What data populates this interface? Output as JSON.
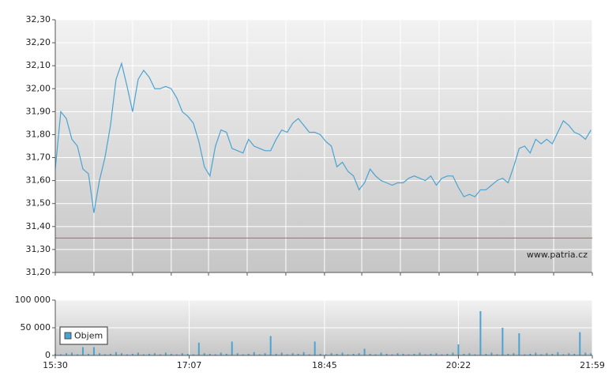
{
  "chart_data": [
    {
      "type": "line",
      "color": "#4aa3d1",
      "watermark": "www.patria.cz",
      "reference_line": {
        "value": 31.35,
        "color": "#d9534f"
      },
      "x": [
        930,
        934,
        938,
        942,
        946,
        950,
        954,
        958,
        962,
        966,
        970,
        974,
        978,
        982,
        986,
        990,
        994,
        998,
        1002,
        1006,
        1010,
        1014,
        1018,
        1022,
        1026,
        1030,
        1034,
        1038,
        1042,
        1046,
        1050,
        1054,
        1058,
        1062,
        1066,
        1070,
        1074,
        1078,
        1082,
        1086,
        1090,
        1094,
        1098,
        1102,
        1106,
        1110,
        1114,
        1118,
        1122,
        1126,
        1130,
        1134,
        1138,
        1142,
        1146,
        1150,
        1154,
        1158,
        1162,
        1166,
        1170,
        1174,
        1178,
        1182,
        1186,
        1190,
        1194,
        1198,
        1202,
        1206,
        1210,
        1214,
        1218,
        1222,
        1226,
        1230,
        1234,
        1238,
        1242,
        1246,
        1250,
        1254,
        1258,
        1262,
        1266,
        1270,
        1274,
        1278,
        1282,
        1286,
        1290,
        1294,
        1298,
        1302,
        1306,
        1310,
        1314,
        1318
      ],
      "values": [
        31.65,
        31.9,
        31.87,
        31.78,
        31.75,
        31.65,
        31.63,
        31.46,
        31.6,
        31.7,
        31.84,
        32.04,
        32.11,
        32.01,
        31.9,
        32.04,
        32.08,
        32.05,
        32.0,
        32.0,
        32.01,
        32.0,
        31.96,
        31.9,
        31.88,
        31.85,
        31.77,
        31.66,
        31.62,
        31.75,
        31.82,
        31.81,
        31.74,
        31.73,
        31.72,
        31.78,
        31.75,
        31.74,
        31.73,
        31.73,
        31.78,
        31.82,
        31.81,
        31.85,
        31.87,
        31.84,
        31.81,
        31.81,
        31.8,
        31.77,
        31.75,
        31.66,
        31.68,
        31.64,
        31.62,
        31.56,
        31.59,
        31.65,
        31.62,
        31.6,
        31.59,
        31.58,
        31.59,
        31.59,
        31.61,
        31.62,
        31.61,
        31.6,
        31.62,
        31.58,
        31.61,
        31.62,
        31.62,
        31.57,
        31.53,
        31.54,
        31.53,
        31.56,
        31.56,
        31.58,
        31.6,
        31.61,
        31.59,
        31.66,
        31.74,
        31.75,
        31.72,
        31.78,
        31.76,
        31.78,
        31.76,
        31.81,
        31.86,
        31.84,
        31.81,
        31.8,
        31.78,
        31.82
      ],
      "xlim": [
        930,
        1319
      ],
      "xticks": [
        930,
        958,
        986,
        1014,
        1041,
        1069,
        1097,
        1125,
        1152,
        1180,
        1208,
        1236,
        1263,
        1291,
        1319
      ],
      "ylim": [
        31.2,
        32.3
      ],
      "yticks": [
        {
          "value": 31.2,
          "label": "31,20"
        },
        {
          "value": 31.3,
          "label": "31,30"
        },
        {
          "value": 31.4,
          "label": "31,40"
        },
        {
          "value": 31.5,
          "label": "31,50"
        },
        {
          "value": 31.6,
          "label": "31,60"
        },
        {
          "value": 31.7,
          "label": "31,70"
        },
        {
          "value": 31.8,
          "label": "31,80"
        },
        {
          "value": 31.9,
          "label": "31,90"
        },
        {
          "value": 32.0,
          "label": "32,00"
        },
        {
          "value": 32.1,
          "label": "32,10"
        },
        {
          "value": 32.2,
          "label": "32,20"
        },
        {
          "value": 32.3,
          "label": "32,30"
        }
      ],
      "grid": true
    },
    {
      "type": "bar",
      "legend": "bottom-left",
      "x": [
        930,
        934,
        938,
        942,
        946,
        950,
        954,
        958,
        962,
        966,
        970,
        974,
        978,
        982,
        986,
        990,
        994,
        998,
        1002,
        1006,
        1010,
        1014,
        1018,
        1022,
        1026,
        1030,
        1034,
        1038,
        1042,
        1046,
        1050,
        1054,
        1058,
        1062,
        1066,
        1070,
        1074,
        1078,
        1082,
        1086,
        1090,
        1094,
        1098,
        1102,
        1106,
        1110,
        1114,
        1118,
        1122,
        1126,
        1130,
        1134,
        1138,
        1142,
        1146,
        1150,
        1154,
        1158,
        1162,
        1166,
        1170,
        1174,
        1178,
        1182,
        1186,
        1190,
        1194,
        1198,
        1202,
        1206,
        1210,
        1214,
        1218,
        1222,
        1226,
        1230,
        1234,
        1238,
        1242,
        1246,
        1250,
        1254,
        1258,
        1262,
        1266,
        1270,
        1274,
        1278,
        1282,
        1286,
        1290,
        1294,
        1298,
        1302,
        1306,
        1310,
        1314,
        1318
      ],
      "series": [
        {
          "name": "Objem",
          "color": "#4aa3d1",
          "values": [
            3000,
            2000,
            4000,
            5000,
            2000,
            15000,
            3000,
            15000,
            4000,
            2000,
            3000,
            6000,
            4000,
            2000,
            3000,
            5000,
            2000,
            3000,
            4000,
            2000,
            5000,
            3000,
            2000,
            4000,
            3000,
            2000,
            23000,
            4000,
            3000,
            2000,
            5000,
            3000,
            25000,
            4000,
            2000,
            3000,
            6000,
            2000,
            4000,
            35000,
            3000,
            5000,
            2000,
            4000,
            3000,
            6000,
            2000,
            25000,
            3000,
            2000,
            4000,
            3000,
            5000,
            2000,
            3000,
            4000,
            12000,
            3000,
            2000,
            5000,
            3000,
            2000,
            4000,
            3000,
            2000,
            3000,
            5000,
            2000,
            3000,
            4000,
            2000,
            3000,
            5000,
            20000,
            3000,
            4000,
            2000,
            80000,
            3000,
            5000,
            2000,
            50000,
            3000,
            4000,
            40000,
            2000,
            3000,
            5000,
            2000,
            4000,
            3000,
            6000,
            2000,
            4000,
            3000,
            42000,
            5000,
            4000
          ]
        }
      ],
      "xlim": [
        930,
        1319
      ],
      "xticks": [
        {
          "value": 930,
          "label": "15:30"
        },
        {
          "value": 1027,
          "label": "17:07"
        },
        {
          "value": 1125,
          "label": "18:45"
        },
        {
          "value": 1222,
          "label": "20:22"
        },
        {
          "value": 1319,
          "label": "21:59"
        }
      ],
      "ylim": [
        0,
        100000
      ],
      "yticks": [
        0,
        {
          "value": 50000,
          "label": "50 000"
        },
        {
          "value": 100000,
          "label": "100 000"
        }
      ],
      "grid": true
    }
  ]
}
